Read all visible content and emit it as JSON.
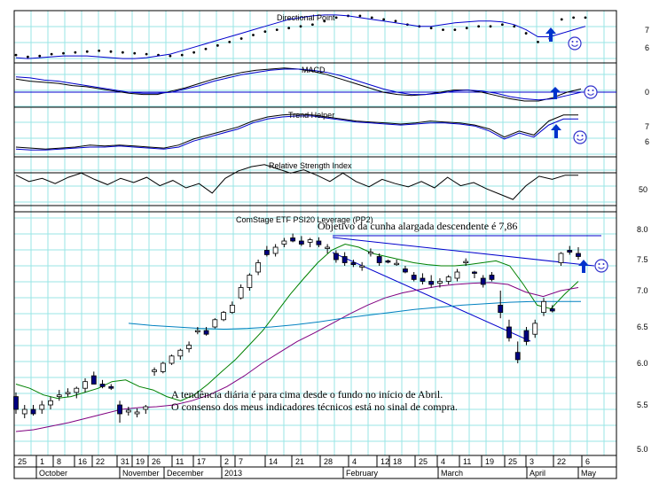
{
  "chart_data": {
    "type": "line",
    "xaxis": {
      "day_labels": [
        "25",
        "1",
        "8",
        "16",
        "22",
        "31",
        "19",
        "26",
        "11",
        "17",
        "2",
        "7",
        "14",
        "21",
        "28",
        "4",
        "12",
        "18",
        "25",
        "4",
        "11",
        "19",
        "25",
        "3",
        "22",
        "6"
      ],
      "month_labels": [
        "October",
        "November",
        "December",
        "2013",
        "February",
        "March",
        "April",
        "May"
      ]
    },
    "panels": [
      {
        "id": "psar",
        "title": "Directional Point",
        "y_ticks": [
          "7",
          "6"
        ],
        "series": [
          {
            "kind": "dots",
            "color": "#000000",
            "values": [
              5.55,
              5.45,
              5.5,
              5.6,
              5.65,
              5.7,
              5.75,
              5.8,
              5.75,
              5.7,
              5.65,
              5.6,
              5.55,
              5.5,
              5.55,
              5.7,
              5.9,
              6.1,
              6.3,
              6.5,
              6.7,
              6.9,
              7.0,
              7.1,
              7.2,
              7.3,
              7.5,
              7.7,
              7.8,
              7.8,
              7.7,
              7.6,
              7.5,
              7.3,
              7.2,
              7.1,
              7.0,
              7.0,
              7.1,
              7.2,
              7.2,
              7.3,
              7.2,
              6.8,
              6.3,
              6.5,
              7.6,
              7.7,
              7.7
            ]
          },
          {
            "kind": "line",
            "color": "#0000cc",
            "values": [
              5.4,
              5.35,
              5.4,
              5.45,
              5.5,
              5.5,
              5.5,
              5.45,
              5.4,
              5.35,
              5.35,
              5.4,
              5.5,
              5.6,
              5.8,
              6.0,
              6.2,
              6.4,
              6.6,
              6.8,
              7.0,
              7.2,
              7.4,
              7.6,
              7.7,
              7.8,
              7.85,
              7.85,
              7.8,
              7.7,
              7.6,
              7.5,
              7.4,
              7.3,
              7.2,
              7.2,
              7.3,
              7.4,
              7.45,
              7.5,
              7.5,
              7.45,
              7.3,
              7.0,
              6.6,
              6.6,
              6.8,
              7.0,
              7.2
            ]
          }
        ]
      },
      {
        "id": "macd",
        "title": "MACD",
        "y_ticks": [
          "0"
        ],
        "series": [
          {
            "kind": "line",
            "color": "#000000",
            "values": [
              0.12,
              0.1,
              0.09,
              0.08,
              0.06,
              0.05,
              0.03,
              0.01,
              -0.01,
              -0.02,
              -0.02,
              0.01,
              0.04,
              0.08,
              0.12,
              0.15,
              0.18,
              0.2,
              0.21,
              0.22,
              0.21,
              0.19,
              0.16,
              0.12,
              0.08,
              0.04,
              0.0,
              -0.02,
              -0.03,
              -0.02,
              0.0,
              0.02,
              0.02,
              0.0,
              -0.03,
              -0.06,
              -0.08,
              -0.08,
              -0.05,
              0.0,
              0.03
            ]
          },
          {
            "kind": "line",
            "color": "#0000cc",
            "values": [
              0.14,
              0.13,
              0.11,
              0.1,
              0.08,
              0.06,
              0.04,
              0.02,
              0.0,
              -0.01,
              -0.01,
              0.0,
              0.03,
              0.06,
              0.1,
              0.13,
              0.16,
              0.18,
              0.2,
              0.21,
              0.21,
              0.2,
              0.18,
              0.15,
              0.11,
              0.07,
              0.03,
              0.0,
              -0.02,
              -0.02,
              -0.01,
              0.01,
              0.02,
              0.01,
              -0.01,
              -0.04,
              -0.06,
              -0.07,
              -0.06,
              -0.03,
              0.0
            ]
          }
        ]
      },
      {
        "id": "trend",
        "title": "Trend Helper",
        "y_ticks": [
          "7",
          "6"
        ],
        "series": [
          {
            "kind": "line",
            "color": "#000000",
            "values": [
              6.0,
              5.95,
              5.9,
              5.95,
              6.0,
              6.1,
              6.05,
              6.1,
              6.05,
              6.0,
              5.95,
              6.1,
              6.4,
              6.6,
              6.8,
              7.0,
              7.3,
              7.5,
              7.6,
              7.65,
              7.6,
              7.5,
              7.4,
              7.3,
              7.25,
              7.2,
              7.15,
              7.2,
              7.3,
              7.25,
              7.2,
              7.1,
              6.9,
              6.5,
              6.8,
              6.6,
              7.3,
              7.6,
              7.6
            ]
          },
          {
            "kind": "line",
            "color": "#0000cc",
            "values": [
              5.9,
              5.85,
              5.85,
              5.9,
              5.95,
              6.0,
              6.0,
              6.05,
              6.0,
              5.95,
              5.9,
              6.0,
              6.3,
              6.5,
              6.7,
              6.9,
              7.2,
              7.4,
              7.5,
              7.55,
              7.55,
              7.45,
              7.35,
              7.25,
              7.2,
              7.15,
              7.1,
              7.15,
              7.2,
              7.2,
              7.15,
              7.05,
              6.8,
              6.4,
              6.7,
              6.5,
              7.1,
              7.4,
              7.4
            ]
          }
        ]
      },
      {
        "id": "rsi",
        "title": "Relative Strength Index",
        "y_ticks": [
          "50"
        ],
        "series": [
          {
            "kind": "line",
            "color": "#000000",
            "values": [
              58,
              52,
              55,
              50,
              56,
              60,
              54,
              49,
              55,
              51,
              56,
              48,
              53,
              46,
              50,
              41,
              55,
              62,
              66,
              68,
              64,
              60,
              63,
              58,
              52,
              60,
              52,
              47,
              54,
              50,
              47,
              52,
              46,
              56,
              48,
              51,
              45,
              40,
              35,
              48,
              57,
              54,
              58,
              58
            ]
          }
        ]
      },
      {
        "id": "price",
        "title": "ComStage ETF PSI20 Leverage (PP2)",
        "y_ticks": [
          "8.0",
          "7.5",
          "7.0",
          "6.5",
          "6.0",
          "5.5",
          "5.0"
        ],
        "annotations": [
          "Objetivo da cunha alargada descendente é 7,86",
          "A tendência diária é para cima desde o fundo no início de Abril.",
          "O consenso dos meus indicadores técnicos está no sinal de compra."
        ],
        "candles": [
          {
            "o": 5.6,
            "h": 5.65,
            "l": 5.4,
            "c": 5.45
          },
          {
            "o": 5.4,
            "h": 5.5,
            "l": 5.35,
            "c": 5.45
          },
          {
            "o": 5.45,
            "h": 5.5,
            "l": 5.38,
            "c": 5.4
          },
          {
            "o": 5.45,
            "h": 5.55,
            "l": 5.4,
            "c": 5.5
          },
          {
            "o": 5.5,
            "h": 5.6,
            "l": 5.45,
            "c": 5.55
          },
          {
            "o": 5.6,
            "h": 5.68,
            "l": 5.55,
            "c": 5.62
          },
          {
            "o": 5.65,
            "h": 5.7,
            "l": 5.6,
            "c": 5.65
          },
          {
            "o": 5.65,
            "h": 5.72,
            "l": 5.58,
            "c": 5.7
          },
          {
            "o": 5.7,
            "h": 5.82,
            "l": 5.65,
            "c": 5.78
          },
          {
            "o": 5.85,
            "h": 5.9,
            "l": 5.75,
            "c": 5.75
          },
          {
            "o": 5.75,
            "h": 5.8,
            "l": 5.7,
            "c": 5.72
          },
          {
            "o": 5.72,
            "h": 5.75,
            "l": 5.68,
            "c": 5.7
          },
          {
            "o": 5.5,
            "h": 5.55,
            "l": 5.3,
            "c": 5.4
          },
          {
            "o": 5.42,
            "h": 5.48,
            "l": 5.38,
            "c": 5.44
          },
          {
            "o": 5.4,
            "h": 5.46,
            "l": 5.36,
            "c": 5.42
          },
          {
            "o": 5.45,
            "h": 5.5,
            "l": 5.4,
            "c": 5.48
          },
          {
            "o": 5.9,
            "h": 5.95,
            "l": 5.85,
            "c": 5.92
          },
          {
            "o": 5.9,
            "h": 6.02,
            "l": 5.88,
            "c": 6.0
          },
          {
            "o": 6.0,
            "h": 6.12,
            "l": 5.98,
            "c": 6.1
          },
          {
            "o": 6.1,
            "h": 6.2,
            "l": 6.05,
            "c": 6.18
          },
          {
            "o": 6.2,
            "h": 6.3,
            "l": 6.15,
            "c": 6.25
          },
          {
            "o": 6.45,
            "h": 6.5,
            "l": 6.4,
            "c": 6.45
          },
          {
            "o": 6.45,
            "h": 6.5,
            "l": 6.38,
            "c": 6.4
          },
          {
            "o": 6.5,
            "h": 6.62,
            "l": 6.48,
            "c": 6.6
          },
          {
            "o": 6.6,
            "h": 6.72,
            "l": 6.58,
            "c": 6.7
          },
          {
            "o": 6.7,
            "h": 6.85,
            "l": 6.68,
            "c": 6.8
          },
          {
            "o": 6.9,
            "h": 7.1,
            "l": 6.88,
            "c": 7.05
          },
          {
            "o": 7.05,
            "h": 7.28,
            "l": 7.0,
            "c": 7.25
          },
          {
            "o": 7.3,
            "h": 7.5,
            "l": 7.25,
            "c": 7.45
          },
          {
            "o": 7.65,
            "h": 7.72,
            "l": 7.55,
            "c": 7.58
          },
          {
            "o": 7.6,
            "h": 7.75,
            "l": 7.55,
            "c": 7.7
          },
          {
            "o": 7.75,
            "h": 7.85,
            "l": 7.7,
            "c": 7.8
          },
          {
            "o": 7.85,
            "h": 7.92,
            "l": 7.78,
            "c": 7.8
          },
          {
            "o": 7.8,
            "h": 7.88,
            "l": 7.72,
            "c": 7.75
          },
          {
            "o": 7.78,
            "h": 7.85,
            "l": 7.7,
            "c": 7.82
          },
          {
            "o": 7.8,
            "h": 7.86,
            "l": 7.7,
            "c": 7.74
          },
          {
            "o": 7.7,
            "h": 7.75,
            "l": 7.6,
            "c": 7.7
          },
          {
            "o": 7.6,
            "h": 7.65,
            "l": 7.45,
            "c": 7.5
          },
          {
            "o": 7.55,
            "h": 7.62,
            "l": 7.4,
            "c": 7.45
          },
          {
            "o": 7.45,
            "h": 7.5,
            "l": 7.38,
            "c": 7.42
          },
          {
            "o": 7.4,
            "h": 7.46,
            "l": 7.32,
            "c": 7.4
          },
          {
            "o": 7.6,
            "h": 7.68,
            "l": 7.55,
            "c": 7.62
          },
          {
            "o": 7.55,
            "h": 7.6,
            "l": 7.4,
            "c": 7.45
          },
          {
            "o": 7.48,
            "h": 7.5,
            "l": 7.44,
            "c": 7.46
          },
          {
            "o": 7.42,
            "h": 7.5,
            "l": 7.4,
            "c": 7.44
          },
          {
            "o": 7.35,
            "h": 7.4,
            "l": 7.28,
            "c": 7.3
          },
          {
            "o": 7.25,
            "h": 7.3,
            "l": 7.15,
            "c": 7.18
          },
          {
            "o": 7.2,
            "h": 7.28,
            "l": 7.1,
            "c": 7.15
          },
          {
            "o": 7.15,
            "h": 7.25,
            "l": 7.05,
            "c": 7.1
          },
          {
            "o": 7.12,
            "h": 7.2,
            "l": 7.05,
            "c": 7.15
          },
          {
            "o": 7.15,
            "h": 7.25,
            "l": 7.1,
            "c": 7.22
          },
          {
            "o": 7.2,
            "h": 7.35,
            "l": 7.15,
            "c": 7.3
          },
          {
            "o": 7.45,
            "h": 7.52,
            "l": 7.4,
            "c": 7.47
          },
          {
            "o": 7.3,
            "h": 7.32,
            "l": 7.2,
            "c": 7.28
          },
          {
            "o": 7.2,
            "h": 7.25,
            "l": 7.05,
            "c": 7.1
          },
          {
            "o": 7.25,
            "h": 7.3,
            "l": 7.15,
            "c": 7.18
          },
          {
            "o": 6.8,
            "h": 7.0,
            "l": 6.62,
            "c": 6.7
          },
          {
            "o": 6.5,
            "h": 6.6,
            "l": 6.3,
            "c": 6.35
          },
          {
            "o": 6.15,
            "h": 6.3,
            "l": 6.0,
            "c": 6.05
          },
          {
            "o": 6.45,
            "h": 6.5,
            "l": 6.25,
            "c": 6.3
          },
          {
            "o": 6.4,
            "h": 6.6,
            "l": 6.35,
            "c": 6.55
          },
          {
            "o": 6.7,
            "h": 6.9,
            "l": 6.65,
            "c": 6.85
          },
          {
            "o": 6.75,
            "h": 6.8,
            "l": 6.7,
            "c": 6.72
          },
          {
            "o": 7.45,
            "h": 7.62,
            "l": 7.4,
            "c": 7.6
          },
          {
            "o": 7.65,
            "h": 7.72,
            "l": 7.58,
            "c": 7.62
          },
          {
            "o": 7.6,
            "h": 7.7,
            "l": 7.5,
            "c": 7.55
          }
        ],
        "lines": [
          {
            "name": "short-ma",
            "color": "#008000",
            "values": [
              5.75,
              5.7,
              5.62,
              5.58,
              5.6,
              5.65,
              5.7,
              5.78,
              5.8,
              5.72,
              5.68,
              5.6,
              5.55,
              5.62,
              5.75,
              5.9,
              6.05,
              6.25,
              6.45,
              6.7,
              6.95,
              7.2,
              7.45,
              7.65,
              7.75,
              7.7,
              7.6,
              7.55,
              7.5,
              7.45,
              7.42,
              7.4,
              7.4,
              7.42,
              7.45,
              7.48,
              7.4,
              7.1,
              6.8,
              6.75,
              6.95,
              7.15
            ]
          },
          {
            "name": "long-ma",
            "color": "#800080",
            "values": [
              5.2,
              5.22,
              5.26,
              5.3,
              5.35,
              5.4,
              5.45,
              5.47,
              5.48,
              5.5,
              5.55,
              5.62,
              5.72,
              5.85,
              6.0,
              6.15,
              6.3,
              6.42,
              6.55,
              6.68,
              6.8,
              6.9,
              6.97,
              7.02,
              7.07,
              7.1,
              7.12,
              7.13,
              7.1,
              6.98,
              6.92,
              7.0,
              7.05
            ]
          },
          {
            "name": "trend-ma",
            "color": "#0080c0",
            "values": [
              6.55,
              6.52,
              6.5,
              6.48,
              6.47,
              6.48,
              6.5,
              6.53,
              6.57,
              6.62,
              6.66,
              6.7,
              6.74,
              6.77,
              6.8,
              6.82,
              6.84,
              6.85,
              6.85,
              6.85
            ]
          }
        ]
      }
    ]
  }
}
